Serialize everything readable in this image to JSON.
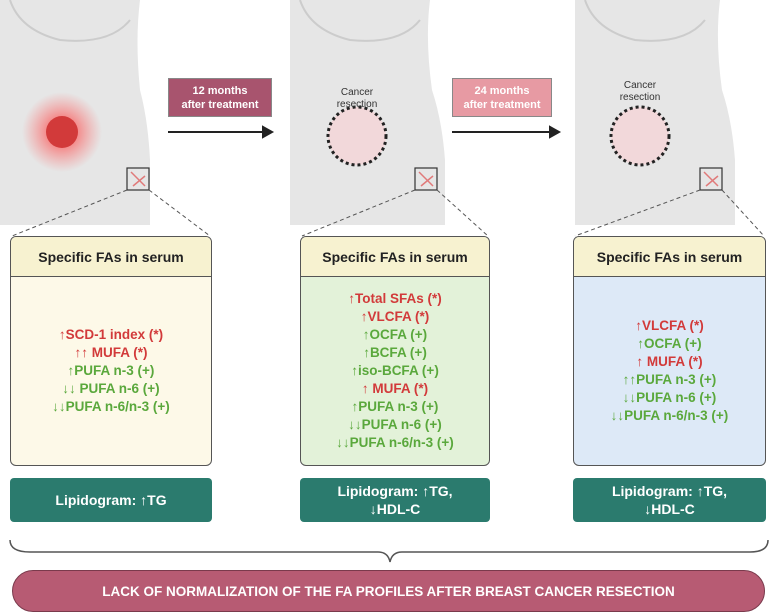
{
  "stages": [
    {
      "label": [
        "12 months",
        "after treatment"
      ]
    },
    {
      "label": [
        "24 months",
        "after treatment"
      ]
    }
  ],
  "resection_labels": [
    [
      "Cancer",
      "resection"
    ],
    [
      "Cancer",
      "resection"
    ]
  ],
  "panels": [
    {
      "header": "Specific FAs in serum",
      "items": [
        {
          "text": "↑SCD-1 index  (*)",
          "color": "#d23a3a"
        },
        {
          "text": "↑↑ MUFA  (*)",
          "color": "#d23a3a"
        },
        {
          "text": "↑PUFA n-3  (+)",
          "color": "#5aa83c"
        },
        {
          "text": "↓↓ PUFA n-6 (+)",
          "color": "#5aa83c"
        },
        {
          "text": "↓↓PUFA n-6/n-3 (+)",
          "color": "#5aa83c"
        }
      ],
      "lipidogram": [
        "Lipidogram: ↑TG"
      ]
    },
    {
      "header": "Specific FAs in serum",
      "items": [
        {
          "text": "↑Total SFAs (*)",
          "color": "#d23a3a"
        },
        {
          "text": "↑VLCFA (*)",
          "color": "#d23a3a"
        },
        {
          "text": "↑OCFA (+)",
          "color": "#5aa83c"
        },
        {
          "text": "↑BCFA (+)",
          "color": "#5aa83c"
        },
        {
          "text": "↑iso-BCFA (+)",
          "color": "#5aa83c"
        },
        {
          "text": "↑ MUFA  (*)",
          "color": "#d23a3a"
        },
        {
          "text": "↑PUFA n-3  (+)",
          "color": "#5aa83c"
        },
        {
          "text": "↓↓PUFA n-6 (+)",
          "color": "#5aa83c"
        },
        {
          "text": "↓↓PUFA n-6/n-3 (+)",
          "color": "#5aa83c"
        }
      ],
      "lipidogram": [
        "Lipidogram: ↑TG,",
        "↓HDL-C"
      ]
    },
    {
      "header": "Specific FAs in serum",
      "items": [
        {
          "text": "↑VLCFA (*)",
          "color": "#d23a3a"
        },
        {
          "text": "↑OCFA (+)",
          "color": "#5aa83c"
        },
        {
          "text": "↑ MUFA  (*)",
          "color": "#d23a3a"
        },
        {
          "text": "↑↑PUFA n-3  (+)",
          "color": "#5aa83c"
        },
        {
          "text": "↓↓PUFA n-6 (+)",
          "color": "#5aa83c"
        },
        {
          "text": "↓↓PUFA n-6/n-3 (+)",
          "color": "#5aa83c"
        }
      ],
      "lipidogram": [
        "Lipidogram: ↑TG,",
        "↓HDL-C"
      ]
    }
  ],
  "conclusion": "LACK OF NORMALIZATION OF THE FA PROFILES AFTER BREAST CANCER RESECTION"
}
